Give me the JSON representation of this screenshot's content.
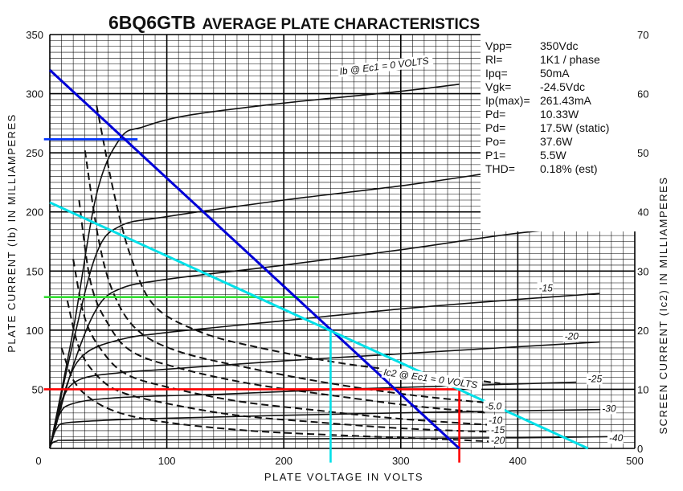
{
  "chart_data": {
    "type": "line",
    "title_part": "6BQ6GTB",
    "title_rest": "AVERAGE PLATE CHARACTERISTICS",
    "xlabel": "PLATE VOLTAGE IN VOLTS",
    "ylabel_left": "PLATE CURRENT (Ib) IN MILLIAMPERES",
    "ylabel_right": "SCREEN CURRENT (Ic2) IN MILLIAMPERES",
    "xlim": [
      0,
      500
    ],
    "ylim": [
      0,
      350
    ],
    "ylim_right": [
      0,
      70
    ],
    "x_ticks": [
      "0",
      "100",
      "200",
      "300",
      "400",
      "500"
    ],
    "y_ticks": [
      "0",
      "50",
      "100",
      "150",
      "200",
      "250",
      "300",
      "350"
    ],
    "y_right_ticks": [
      "0",
      "10",
      "20",
      "30",
      "40",
      "50",
      "60",
      "70"
    ],
    "grid": true,
    "plate_curves": [
      {
        "label": "Ib @ Ec1 = 0 VOLTS",
        "points": [
          [
            0,
            0
          ],
          [
            20,
            100
          ],
          [
            40,
            215
          ],
          [
            60,
            262
          ],
          [
            80,
            272
          ],
          [
            120,
            282
          ],
          [
            200,
            292
          ],
          [
            300,
            302
          ],
          [
            350,
            308
          ]
        ]
      },
      {
        "label": "",
        "points": [
          [
            0,
            0
          ],
          [
            20,
            90
          ],
          [
            40,
            165
          ],
          [
            60,
            188
          ],
          [
            100,
            196
          ],
          [
            200,
            210
          ],
          [
            300,
            222
          ],
          [
            370,
            232
          ]
        ]
      },
      {
        "label": "-10",
        "points": [
          [
            0,
            0
          ],
          [
            20,
            70
          ],
          [
            40,
            118
          ],
          [
            60,
            135
          ],
          [
            100,
            143
          ],
          [
            200,
            155
          ],
          [
            300,
            168
          ],
          [
            400,
            182
          ],
          [
            470,
            188
          ]
        ]
      },
      {
        "label": "-15",
        "points": [
          [
            0,
            0
          ],
          [
            15,
            55
          ],
          [
            30,
            80
          ],
          [
            60,
            92
          ],
          [
            100,
            98
          ],
          [
            200,
            108
          ],
          [
            300,
            118
          ],
          [
            400,
            126
          ],
          [
            470,
            131
          ]
        ]
      },
      {
        "label": "-20",
        "points": [
          [
            0,
            0
          ],
          [
            10,
            40
          ],
          [
            25,
            58
          ],
          [
            60,
            64
          ],
          [
            100,
            67
          ],
          [
            200,
            74
          ],
          [
            300,
            80
          ],
          [
            400,
            86
          ],
          [
            470,
            90
          ]
        ]
      },
      {
        "label": "-25",
        "points": [
          [
            0,
            0
          ],
          [
            8,
            28
          ],
          [
            20,
            38
          ],
          [
            60,
            43
          ],
          [
            150,
            46
          ],
          [
            250,
            50
          ],
          [
            350,
            53
          ],
          [
            450,
            56
          ]
        ]
      },
      {
        "label": "-30",
        "points": [
          [
            0,
            0
          ],
          [
            6,
            17
          ],
          [
            18,
            22
          ],
          [
            80,
            25
          ],
          [
            200,
            28
          ],
          [
            350,
            31
          ],
          [
            480,
            33
          ]
        ]
      },
      {
        "label": "-40",
        "points": [
          [
            0,
            0
          ],
          [
            5,
            6
          ],
          [
            30,
            7
          ],
          [
            200,
            8
          ],
          [
            400,
            9
          ],
          [
            480,
            10
          ]
        ]
      }
    ],
    "screen_curves": [
      {
        "label": "Ic2 @ Ec1 = 0 VOLTS",
        "points": [
          [
            40,
            290
          ],
          [
            55,
            215
          ],
          [
            70,
            160
          ],
          [
            90,
            120
          ],
          [
            130,
            98
          ],
          [
            180,
            85
          ],
          [
            250,
            72
          ],
          [
            330,
            62
          ],
          [
            385,
            55
          ]
        ]
      },
      {
        "label": "",
        "points": [
          [
            30,
            252
          ],
          [
            42,
            175
          ],
          [
            55,
            130
          ],
          [
            75,
            100
          ],
          [
            110,
            82
          ],
          [
            170,
            68
          ],
          [
            240,
            55
          ],
          [
            310,
            45
          ],
          [
            380,
            38
          ]
        ]
      },
      {
        "label": "-5.0",
        "points": [
          [
            25,
            210
          ],
          [
            35,
            140
          ],
          [
            50,
            105
          ],
          [
            70,
            82
          ],
          [
            110,
            68
          ],
          [
            170,
            55
          ],
          [
            240,
            45
          ],
          [
            310,
            36
          ],
          [
            375,
            30
          ]
        ]
      },
      {
        "label": "-10",
        "points": [
          [
            20,
            160
          ],
          [
            30,
            110
          ],
          [
            45,
            82
          ],
          [
            65,
            63
          ],
          [
            100,
            52
          ],
          [
            160,
            40
          ],
          [
            230,
            32
          ],
          [
            300,
            25
          ],
          [
            375,
            20
          ]
        ]
      },
      {
        "label": "-15",
        "points": [
          [
            15,
            125
          ],
          [
            25,
            85
          ],
          [
            40,
            62
          ],
          [
            60,
            48
          ],
          [
            100,
            38
          ],
          [
            160,
            28
          ],
          [
            230,
            22
          ],
          [
            300,
            17
          ],
          [
            375,
            14
          ]
        ]
      },
      {
        "label": "-20",
        "points": [
          [
            10,
            85
          ],
          [
            20,
            58
          ],
          [
            35,
            42
          ],
          [
            60,
            30
          ],
          [
            100,
            22
          ],
          [
            170,
            15
          ],
          [
            250,
            11
          ],
          [
            330,
            8
          ],
          [
            375,
            6
          ]
        ]
      }
    ],
    "load_lines": [
      {
        "color": "#0000d8",
        "points": [
          [
            0,
            320
          ],
          [
            350,
            0
          ]
        ]
      },
      {
        "color": "#00e0e8",
        "points": [
          [
            0,
            208
          ],
          [
            460,
            0
          ]
        ]
      }
    ],
    "guide_lines": [
      {
        "color": "#0033ff",
        "points": [
          [
            -5,
            261.43
          ],
          [
            75,
            261.43
          ]
        ]
      },
      {
        "color": "#33dd33",
        "points": [
          [
            -5,
            128
          ],
          [
            230,
            128
          ]
        ]
      },
      {
        "color": "#ff0000",
        "points": [
          [
            -5,
            50
          ],
          [
            350,
            50
          ]
        ]
      },
      {
        "color": "#ff0000",
        "points": [
          [
            350,
            50
          ],
          [
            350,
            -12
          ]
        ]
      },
      {
        "color": "#00e0e8",
        "points": [
          [
            240,
            100
          ],
          [
            240,
            -12
          ]
        ]
      }
    ],
    "specs": [
      {
        "label": "Vpp=",
        "value": "350Vdc"
      },
      {
        "label": "Rl=",
        "value": "1K1 / phase"
      },
      {
        "label": "Ipq=",
        "value": "50mA"
      },
      {
        "label": "Vgk=",
        "value": "-24.5Vdc"
      },
      {
        "label": "Ip(max)=",
        "value": "261.43mA"
      },
      {
        "label": "Pd=",
        "value": "10.33W"
      },
      {
        "label": "Pd=",
        "value": "17.5W (static)"
      },
      {
        "label": "Po=",
        "value": "37.6W"
      },
      {
        "label": "P1=",
        "value": "5.5W"
      },
      {
        "label": "THD=",
        "value": "0.18% (est)"
      }
    ]
  }
}
